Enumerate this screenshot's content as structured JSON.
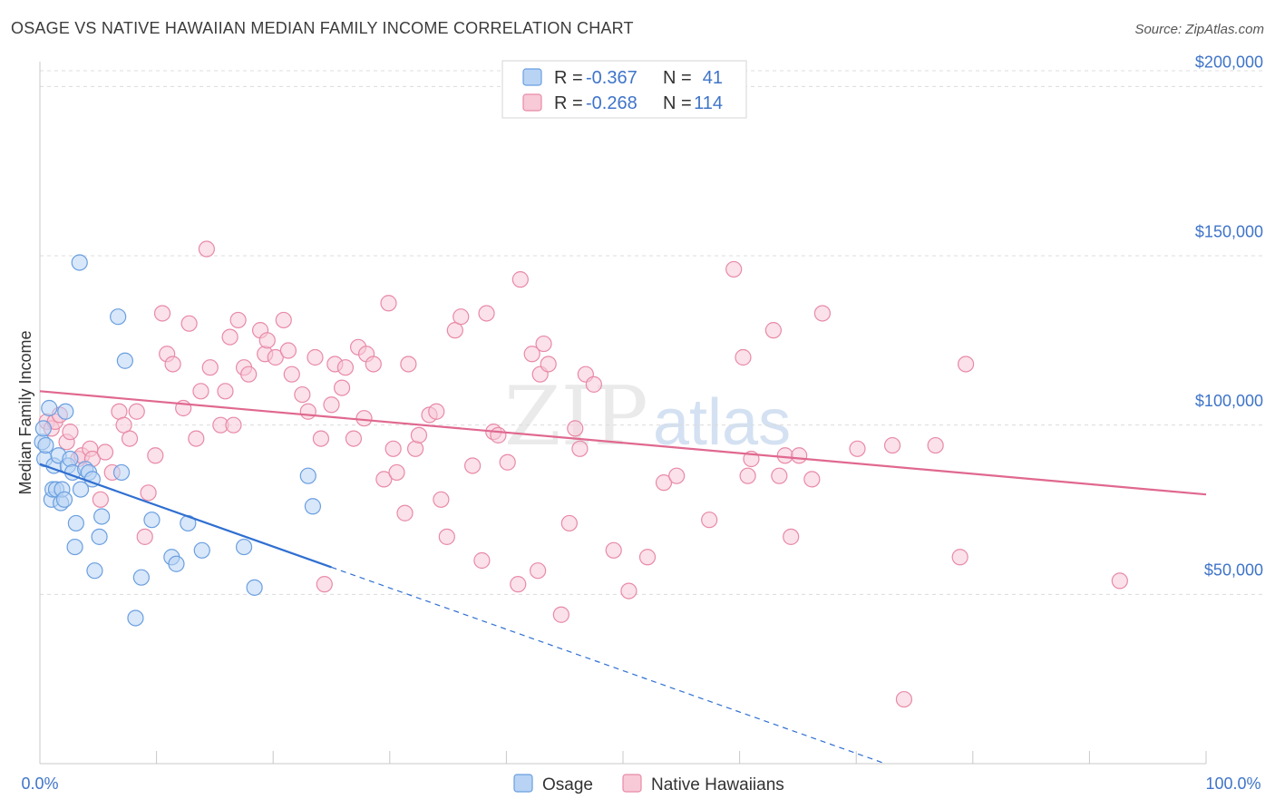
{
  "title": "OSAGE VS NATIVE HAWAIIAN MEDIAN FAMILY INCOME CORRELATION CHART",
  "source": "Source: ZipAtlas.com",
  "watermark": {
    "zip": "ZIP",
    "atlas": "atlas"
  },
  "colors": {
    "osage": "#6a9fe0",
    "osage_fill": "#b8d3f4",
    "osage_line": "#2f6fd1",
    "hawaiian": "#e88aa7",
    "hawaiian_fill": "#f8c9d7",
    "hawaiian_line": "#e0688f",
    "tick_text": "#3f74c9",
    "grid": "#dcdcdc"
  },
  "legend": {
    "rows": [
      {
        "r_label": "R = ",
        "r_value": "-0.367",
        "n_label": "N = ",
        "n_value": "41"
      },
      {
        "r_label": "R = ",
        "r_value": "-0.268",
        "n_label": "N = ",
        "n_value": "114"
      }
    ]
  },
  "bottom_legend": [
    "Osage",
    "Native Hawaiians"
  ],
  "chart_data": {
    "type": "scatter",
    "title": "OSAGE VS NATIVE HAWAIIAN MEDIAN FAMILY INCOME CORRELATION CHART",
    "xlabel": "",
    "ylabel": "Median Family Income",
    "xlim": [
      0,
      100
    ],
    "ylim": [
      0,
      210000
    ],
    "x_tick_labels": [
      "0.0%",
      "100.0%"
    ],
    "y_ticks": [
      50000,
      100000,
      150000,
      200000
    ],
    "y_tick_labels": [
      "$50,000",
      "$100,000",
      "$150,000",
      "$200,000"
    ],
    "grid": true,
    "legend_position": "top-center",
    "series": [
      {
        "name": "Osage",
        "r": -0.367,
        "n": 41,
        "trend": {
          "x0": 0,
          "y0": 88500,
          "x1": 25,
          "y1": 58000,
          "dashed_to_x": 72.5,
          "dashed_to_y": 0
        },
        "points": [
          [
            0.2,
            95000
          ],
          [
            0.3,
            99000
          ],
          [
            0.4,
            90000
          ],
          [
            0.5,
            94000
          ],
          [
            0.8,
            105000
          ],
          [
            1.0,
            78000
          ],
          [
            1.1,
            81000
          ],
          [
            1.2,
            88000
          ],
          [
            1.4,
            81000
          ],
          [
            1.6,
            91000
          ],
          [
            1.8,
            77000
          ],
          [
            1.9,
            81000
          ],
          [
            2.1,
            78000
          ],
          [
            2.2,
            104000
          ],
          [
            2.4,
            88000
          ],
          [
            2.6,
            90000
          ],
          [
            2.8,
            86000
          ],
          [
            3.0,
            64000
          ],
          [
            3.1,
            71000
          ],
          [
            3.4,
            148000
          ],
          [
            3.5,
            81000
          ],
          [
            3.9,
            87000
          ],
          [
            4.2,
            86000
          ],
          [
            4.5,
            84000
          ],
          [
            4.7,
            57000
          ],
          [
            5.1,
            67000
          ],
          [
            5.3,
            73000
          ],
          [
            6.7,
            132000
          ],
          [
            7.3,
            119000
          ],
          [
            8.2,
            43000
          ],
          [
            8.7,
            55000
          ],
          [
            9.6,
            72000
          ],
          [
            11.3,
            61000
          ],
          [
            11.7,
            59000
          ],
          [
            12.7,
            71000
          ],
          [
            13.9,
            63000
          ],
          [
            17.5,
            64000
          ],
          [
            18.4,
            52000
          ],
          [
            23.0,
            85000
          ],
          [
            23.4,
            76000
          ],
          [
            7.0,
            86000
          ]
        ]
      },
      {
        "name": "Native Hawaiians",
        "r": -0.268,
        "n": 114,
        "trend": {
          "x0": 0,
          "y0": 110000,
          "x1": 100,
          "y1": 79500
        },
        "points": [
          [
            0.6,
            101000
          ],
          [
            1.0,
            99000
          ],
          [
            1.3,
            101000
          ],
          [
            1.7,
            103000
          ],
          [
            2.3,
            95000
          ],
          [
            2.6,
            98000
          ],
          [
            3.3,
            90000
          ],
          [
            3.6,
            91000
          ],
          [
            4.3,
            93000
          ],
          [
            4.5,
            90000
          ],
          [
            5.2,
            78000
          ],
          [
            5.6,
            92000
          ],
          [
            6.2,
            86000
          ],
          [
            6.8,
            104000
          ],
          [
            7.2,
            100000
          ],
          [
            7.7,
            96000
          ],
          [
            8.3,
            104000
          ],
          [
            9.0,
            67000
          ],
          [
            9.3,
            80000
          ],
          [
            9.9,
            91000
          ],
          [
            10.5,
            133000
          ],
          [
            10.9,
            121000
          ],
          [
            11.4,
            118000
          ],
          [
            12.3,
            105000
          ],
          [
            12.8,
            130000
          ],
          [
            13.4,
            96000
          ],
          [
            13.8,
            110000
          ],
          [
            14.3,
            152000
          ],
          [
            14.6,
            117000
          ],
          [
            15.5,
            100000
          ],
          [
            15.9,
            110000
          ],
          [
            16.3,
            126000
          ],
          [
            16.6,
            100000
          ],
          [
            17.0,
            131000
          ],
          [
            17.5,
            117000
          ],
          [
            17.9,
            115000
          ],
          [
            18.9,
            128000
          ],
          [
            19.3,
            121000
          ],
          [
            19.5,
            125000
          ],
          [
            20.2,
            120000
          ],
          [
            20.9,
            131000
          ],
          [
            21.3,
            122000
          ],
          [
            21.6,
            115000
          ],
          [
            22.5,
            109000
          ],
          [
            23.0,
            104000
          ],
          [
            23.6,
            120000
          ],
          [
            24.1,
            96000
          ],
          [
            24.4,
            53000
          ],
          [
            25.0,
            106000
          ],
          [
            25.3,
            118000
          ],
          [
            25.9,
            111000
          ],
          [
            26.2,
            117000
          ],
          [
            26.9,
            96000
          ],
          [
            27.3,
            123000
          ],
          [
            27.8,
            102000
          ],
          [
            28.0,
            121000
          ],
          [
            28.6,
            118000
          ],
          [
            29.5,
            84000
          ],
          [
            29.9,
            136000
          ],
          [
            30.3,
            93000
          ],
          [
            30.6,
            86000
          ],
          [
            31.3,
            74000
          ],
          [
            31.6,
            118000
          ],
          [
            32.2,
            93000
          ],
          [
            32.5,
            97000
          ],
          [
            33.4,
            103000
          ],
          [
            34.0,
            104000
          ],
          [
            34.4,
            78000
          ],
          [
            34.9,
            67000
          ],
          [
            35.6,
            128000
          ],
          [
            36.1,
            132000
          ],
          [
            37.1,
            88000
          ],
          [
            37.9,
            60000
          ],
          [
            38.3,
            133000
          ],
          [
            38.9,
            98000
          ],
          [
            39.3,
            97000
          ],
          [
            40.1,
            89000
          ],
          [
            41.0,
            53000
          ],
          [
            41.2,
            143000
          ],
          [
            42.2,
            121000
          ],
          [
            42.7,
            57000
          ],
          [
            42.9,
            115000
          ],
          [
            43.2,
            124000
          ],
          [
            43.6,
            118000
          ],
          [
            44.7,
            44000
          ],
          [
            45.4,
            71000
          ],
          [
            45.9,
            99000
          ],
          [
            46.3,
            93000
          ],
          [
            46.8,
            115000
          ],
          [
            47.5,
            112000
          ],
          [
            49.2,
            63000
          ],
          [
            50.5,
            51000
          ],
          [
            52.1,
            61000
          ],
          [
            53.5,
            83000
          ],
          [
            54.6,
            85000
          ],
          [
            57.4,
            72000
          ],
          [
            59.5,
            146000
          ],
          [
            60.3,
            120000
          ],
          [
            60.7,
            85000
          ],
          [
            61.0,
            90000
          ],
          [
            62.9,
            128000
          ],
          [
            63.4,
            85000
          ],
          [
            63.9,
            91000
          ],
          [
            64.4,
            67000
          ],
          [
            65.1,
            91000
          ],
          [
            66.2,
            84000
          ],
          [
            67.1,
            133000
          ],
          [
            70.1,
            93000
          ],
          [
            73.1,
            94000
          ],
          [
            74.1,
            19000
          ],
          [
            76.8,
            94000
          ],
          [
            78.9,
            61000
          ],
          [
            79.4,
            118000
          ],
          [
            92.6,
            54000
          ]
        ]
      }
    ]
  }
}
